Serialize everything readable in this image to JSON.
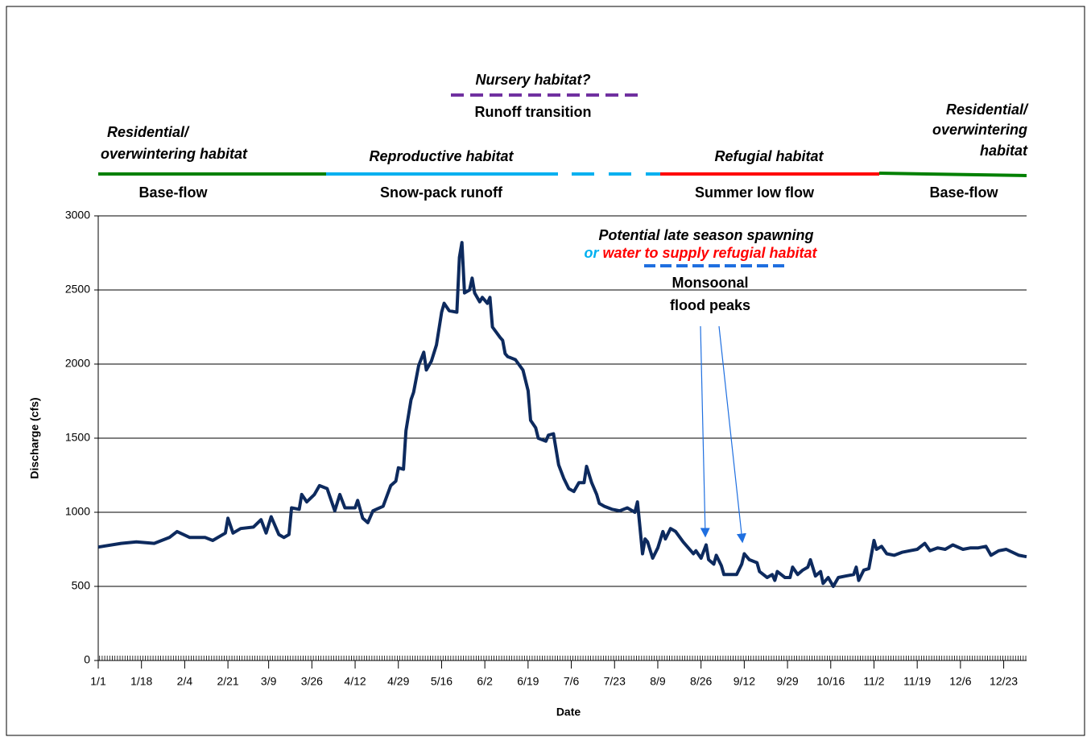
{
  "chart_data": {
    "type": "line",
    "xlabel": "Date",
    "ylabel": "Discharge (cfs)",
    "xlim": [
      1,
      366
    ],
    "ylim": [
      0,
      3000
    ],
    "xticks": [
      {
        "value": 1,
        "label": "1/1"
      },
      {
        "value": 18,
        "label": "1/18"
      },
      {
        "value": 35,
        "label": "2/4"
      },
      {
        "value": 52,
        "label": "2/21"
      },
      {
        "value": 68,
        "label": "3/9"
      },
      {
        "value": 85,
        "label": "3/26"
      },
      {
        "value": 102,
        "label": "4/12"
      },
      {
        "value": 119,
        "label": "4/29"
      },
      {
        "value": 136,
        "label": "5/16"
      },
      {
        "value": 153,
        "label": "6/2"
      },
      {
        "value": 170,
        "label": "6/19"
      },
      {
        "value": 187,
        "label": "7/6"
      },
      {
        "value": 204,
        "label": "7/23"
      },
      {
        "value": 221,
        "label": "8/9"
      },
      {
        "value": 238,
        "label": "8/26"
      },
      {
        "value": 255,
        "label": "9/12"
      },
      {
        "value": 272,
        "label": "9/29"
      },
      {
        "value": 289,
        "label": "10/16"
      },
      {
        "value": 306,
        "label": "11/2"
      },
      {
        "value": 323,
        "label": "11/19"
      },
      {
        "value": 340,
        "label": "12/6"
      },
      {
        "value": 357,
        "label": "12/23"
      }
    ],
    "yticks": [
      0,
      500,
      1000,
      1500,
      2000,
      2500,
      3000
    ],
    "grid": true,
    "series": [
      {
        "color": "#0d2a5e",
        "x": [
          1,
          10,
          16,
          23,
          29,
          32,
          37,
          43,
          46,
          51,
          52,
          54,
          57,
          62,
          65,
          67,
          69,
          72,
          74,
          76,
          77,
          80,
          81,
          83,
          86,
          88,
          91,
          94,
          96,
          98,
          102,
          103,
          105,
          107,
          109,
          113,
          116,
          118,
          119,
          121,
          122,
          124,
          125,
          127,
          129,
          130,
          132,
          134,
          136,
          137,
          139,
          142,
          143,
          144,
          145,
          147,
          148,
          149,
          151,
          152,
          154,
          155,
          156,
          159,
          160,
          161,
          162,
          165,
          168,
          170,
          171,
          173,
          174,
          177,
          178,
          180,
          182,
          184,
          186,
          188,
          190,
          192,
          193,
          195,
          197,
          198,
          200,
          203,
          206,
          209,
          212,
          213,
          214,
          215,
          216,
          217,
          219,
          221,
          223,
          224,
          226,
          228,
          231,
          233,
          235,
          236,
          238,
          240,
          241,
          243,
          244,
          246,
          247,
          250,
          252,
          254,
          255,
          257,
          260,
          261,
          264,
          266,
          267,
          268,
          271,
          273,
          274,
          276,
          278,
          280,
          281,
          283,
          285,
          286,
          288,
          290,
          292,
          295,
          298,
          299,
          300,
          302,
          304,
          306,
          307,
          309,
          311,
          314,
          317,
          320,
          323,
          326,
          328,
          331,
          334,
          337,
          341,
          344,
          347,
          350,
          352,
          355,
          358,
          363,
          366
        ],
        "values": [
          765,
          790,
          800,
          790,
          830,
          870,
          830,
          830,
          810,
          860,
          960,
          860,
          890,
          900,
          950,
          860,
          970,
          850,
          830,
          850,
          1030,
          1020,
          1120,
          1070,
          1120,
          1180,
          1160,
          1010,
          1120,
          1030,
          1030,
          1080,
          960,
          930,
          1010,
          1040,
          1180,
          1210,
          1300,
          1290,
          1550,
          1760,
          1810,
          1990,
          2080,
          1960,
          2020,
          2130,
          2350,
          2410,
          2360,
          2350,
          2720,
          2820,
          2480,
          2500,
          2580,
          2480,
          2420,
          2450,
          2410,
          2450,
          2250,
          2180,
          2160,
          2070,
          2050,
          2030,
          1960,
          1820,
          1620,
          1570,
          1500,
          1480,
          1520,
          1530,
          1320,
          1230,
          1160,
          1140,
          1200,
          1200,
          1310,
          1200,
          1120,
          1060,
          1040,
          1020,
          1010,
          1030,
          1000,
          1070,
          900,
          720,
          820,
          800,
          690,
          760,
          870,
          820,
          890,
          870,
          800,
          760,
          720,
          740,
          690,
          780,
          680,
          650,
          710,
          640,
          580,
          580,
          580,
          650,
          720,
          680,
          660,
          600,
          560,
          580,
          540,
          600,
          560,
          560,
          630,
          580,
          610,
          630,
          680,
          570,
          600,
          520,
          560,
          500,
          560,
          570,
          580,
          630,
          540,
          610,
          620,
          810,
          750,
          770,
          720,
          710,
          730,
          740,
          750,
          790,
          740,
          760,
          750,
          780,
          750,
          760,
          760,
          770,
          710,
          740,
          750,
          710,
          700
        ]
      }
    ],
    "annotations": [
      {
        "text": "Nursery habitat?",
        "color": "#7030a0"
      },
      {
        "text": "Runoff transition",
        "color": "#7030a0"
      },
      {
        "text": "Residential/",
        "color": "#008000"
      },
      {
        "text": "overwintering habitat",
        "color": "#008000"
      },
      {
        "text": "Base-flow",
        "color": "#008000"
      },
      {
        "text": "Reproductive habitat",
        "color": "#00b0f0"
      },
      {
        "text": "Snow-pack runoff",
        "color": "#00b0f0"
      },
      {
        "text": "Refugial habitat",
        "color": "#ff0000"
      },
      {
        "text": "Summer low flow",
        "color": "#ff0000"
      },
      {
        "text": "Residential/",
        "color": "#008000"
      },
      {
        "text": "overwintering",
        "color": "#008000"
      },
      {
        "text": "habitat",
        "color": "#008000"
      },
      {
        "text": "Base-flow",
        "color": "#008000"
      },
      {
        "text": "Potential late season spawning",
        "color": "#00b0f0"
      },
      {
        "text": "or",
        "color": "#00b0f0"
      },
      {
        "text": "water to supply refugial habitat",
        "color": "#ff0000"
      },
      {
        "text": "Monsoonal",
        "color": "#1f6fe0"
      },
      {
        "text": "flood peaks",
        "color": "#1f6fe0"
      }
    ]
  }
}
